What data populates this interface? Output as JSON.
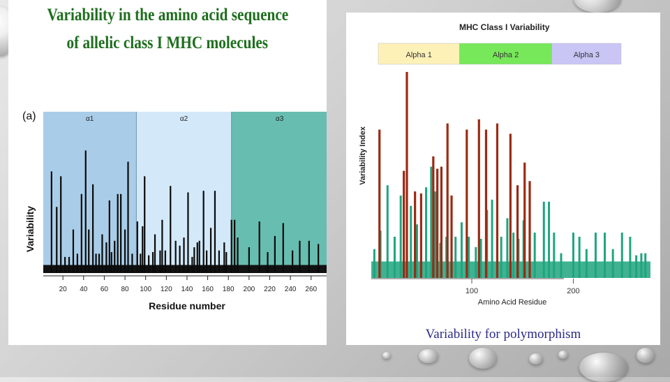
{
  "left_figure": {
    "title_line1": "Variability in the amino acid sequence",
    "title_line2": "of allelic class I MHC molecules",
    "panel_label": "(a)",
    "chart_data": {
      "type": "bar",
      "xlabel": "Residue number",
      "ylabel": "Variability",
      "xlim": [
        1,
        275
      ],
      "x_ticks": [
        20,
        40,
        60,
        80,
        100,
        120,
        140,
        160,
        180,
        200,
        220,
        240,
        260
      ],
      "domains": [
        {
          "name": "α1",
          "start": 1,
          "end": 90,
          "color": "#a9cde8"
        },
        {
          "name": "α2",
          "start": 91,
          "end": 182,
          "color": "#d3e9fa"
        },
        {
          "name": "α3",
          "start": 183,
          "end": 275,
          "color": "#67bdb0"
        }
      ],
      "baseline": 0.05,
      "x": [
        9,
        14,
        18,
        22,
        26,
        30,
        34,
        38,
        42,
        45,
        49,
        52,
        55,
        58,
        62,
        65,
        67,
        70,
        73,
        76,
        80,
        83,
        87,
        92,
        95,
        97,
        99,
        103,
        107,
        109,
        114,
        116,
        119,
        124,
        129,
        133,
        137,
        141,
        145,
        147,
        150,
        152,
        156,
        159,
        163,
        167,
        171,
        176,
        178,
        183,
        186,
        189,
        200,
        210,
        218,
        225,
        233,
        242,
        249,
        258,
        267
      ],
      "values": [
        0.63,
        0.41,
        0.6,
        0.1,
        0.1,
        0.27,
        0.12,
        0.49,
        0.76,
        0.27,
        0.55,
        0.12,
        0.12,
        0.24,
        0.19,
        0.45,
        0.13,
        0.2,
        0.49,
        0.49,
        0.27,
        0.69,
        0.12,
        0.32,
        0.12,
        0.29,
        0.6,
        0.11,
        0.13,
        0.24,
        0.14,
        0.33,
        0.14,
        0.54,
        0.2,
        0.17,
        0.22,
        0.5,
        0.1,
        0.16,
        0.19,
        0.2,
        0.51,
        0.14,
        0.28,
        0.51,
        0.14,
        0.19,
        0.13,
        0.33,
        0.33,
        0.22,
        0.16,
        0.32,
        0.13,
        0.23,
        0.31,
        0.14,
        0.2,
        0.2,
        0.18
      ]
    }
  },
  "right_figure": {
    "chart_data": {
      "type": "bar",
      "title": "MHC Class I Variability",
      "xlabel": "Amino Acid Residue",
      "ylabel": "Variability Index",
      "xlim": [
        1,
        276
      ],
      "x_ticks": [
        100,
        200
      ],
      "domains": [
        {
          "name": "Alpha 1",
          "start": 1,
          "end": 80,
          "color": "#fdf1b8"
        },
        {
          "name": "Alpha 2",
          "start": 81,
          "end": 171,
          "color": "#77e85a"
        },
        {
          "name": "Alpha 3",
          "start": 172,
          "end": 276,
          "color": "#c9c6f6"
        }
      ],
      "series": [
        {
          "color": "#1fa57e",
          "baseline": 0.08,
          "x": [
            4,
            10,
            17,
            24,
            30,
            40,
            46,
            55,
            60,
            64,
            69,
            75,
            84,
            90,
            97,
            104,
            109,
            115,
            120,
            129,
            135,
            141,
            146,
            151,
            157,
            162,
            171,
            176,
            181,
            188,
            200,
            206,
            213,
            222,
            231,
            239,
            248,
            256,
            262,
            267,
            271
          ],
          "values": [
            0.14,
            0.23,
            0.45,
            0.2,
            0.4,
            0.35,
            0.26,
            0.44,
            0.54,
            0.42,
            0.17,
            0.2,
            0.2,
            0.27,
            0.2,
            0.15,
            0.19,
            0.33,
            0.38,
            0.2,
            0.29,
            0.22,
            0.19,
            0.28,
            0.16,
            0.22,
            0.37,
            0.37,
            0.22,
            0.12,
            0.22,
            0.2,
            0.14,
            0.22,
            0.22,
            0.14,
            0.22,
            0.2,
            0.11,
            0.12,
            0.12
          ]
        },
        {
          "color": "#9b2a14",
          "baseline": 0,
          "x": [
            9,
            33,
            36,
            44,
            50,
            62,
            66,
            70,
            76,
            80,
            95,
            107,
            114,
            125,
            138,
            145,
            152,
            157
          ],
          "values": [
            0.72,
            0.52,
            1.0,
            0.42,
            0.41,
            0.59,
            0.53,
            0.54,
            0.75,
            0.4,
            0.72,
            0.77,
            0.72,
            0.75,
            0.7,
            0.45,
            0.56,
            0.47
          ]
        }
      ]
    }
  },
  "caption": "Variability for polymorphism"
}
